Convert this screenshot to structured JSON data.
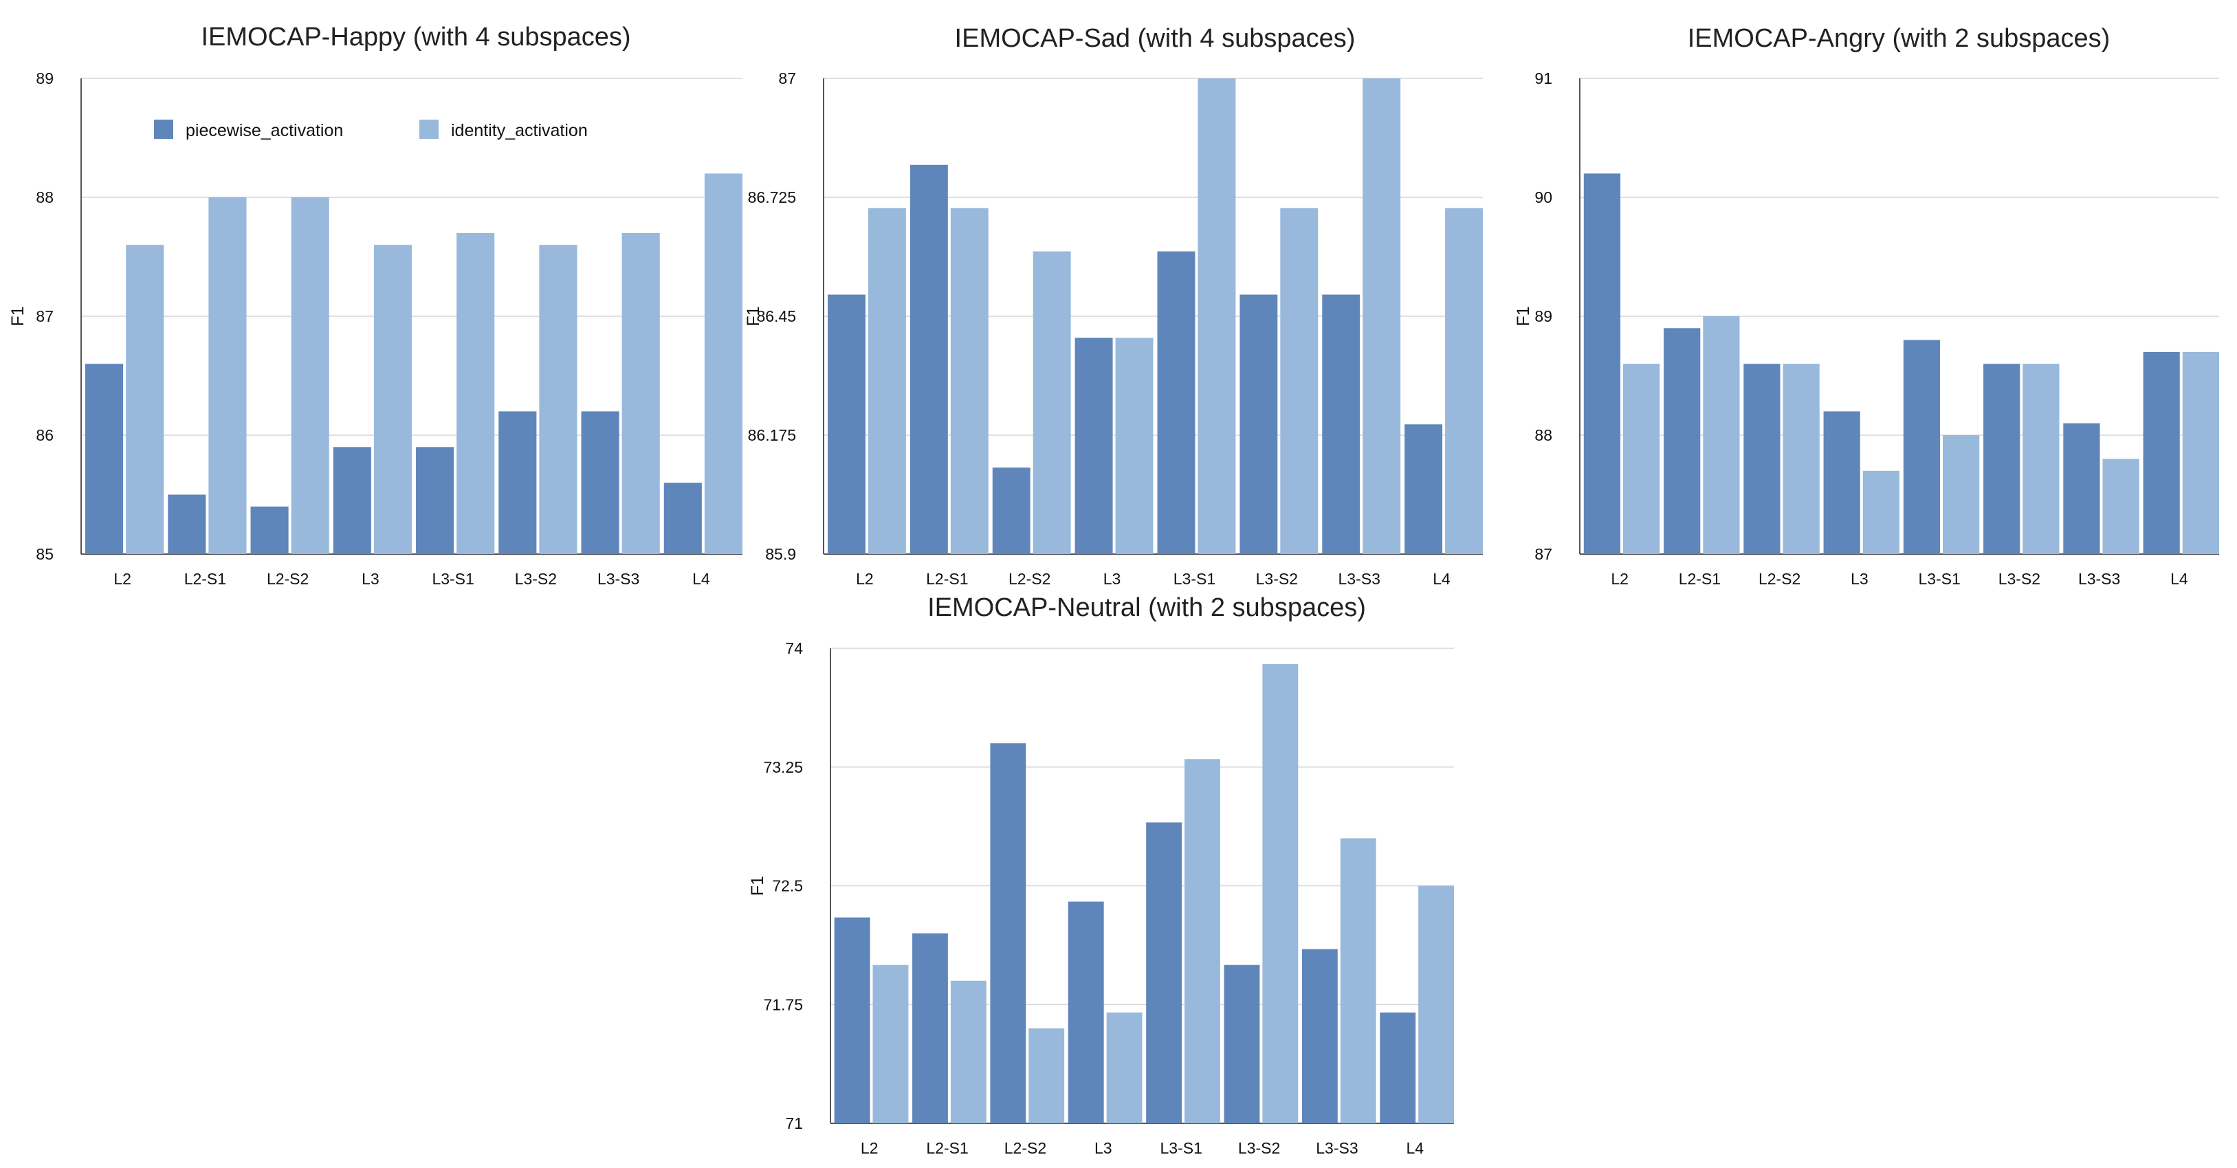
{
  "chart_data": [
    {
      "type": "bar",
      "title": "IEMOCAP-Happy (with 4 subspaces)",
      "xlabel": "",
      "ylabel": "F1",
      "ylim": [
        85,
        89
      ],
      "yticks": [
        "85",
        "86",
        "87",
        "88",
        "89"
      ],
      "categories": [
        "L2",
        "L2-S1",
        "L2-S2",
        "L3",
        "L3-S1",
        "L3-S2",
        "L3-S3",
        "L4"
      ],
      "series": [
        {
          "name": "piecewise_activation",
          "color": "#5f86bb",
          "values": [
            86.6,
            85.5,
            85.4,
            85.9,
            85.9,
            86.2,
            86.2,
            85.6
          ]
        },
        {
          "name": "identity_activation",
          "color": "#98b9dc",
          "values": [
            87.6,
            88.0,
            88.0,
            87.6,
            87.7,
            87.6,
            87.7,
            88.2
          ]
        }
      ],
      "legend": "top-left"
    },
    {
      "type": "bar",
      "title": "IEMOCAP-Sad (with 4 subspaces)",
      "xlabel": "",
      "ylabel": "F1",
      "ylim": [
        85.9,
        87
      ],
      "yticks": [
        "85.9",
        "86.175",
        "86.45",
        "86.725",
        "87"
      ],
      "categories": [
        "L2",
        "L2-S1",
        "L2-S2",
        "L3",
        "L3-S1",
        "L3-S2",
        "L3-S3",
        "L4"
      ],
      "series": [
        {
          "name": "piecewise_activation",
          "color": "#5f86bb",
          "values": [
            86.5,
            86.8,
            86.1,
            86.4,
            86.6,
            86.5,
            86.5,
            86.2
          ]
        },
        {
          "name": "identity_activation",
          "color": "#98b9dc",
          "values": [
            86.7,
            86.7,
            86.6,
            86.4,
            87.0,
            86.7,
            87.0,
            86.7
          ]
        }
      ]
    },
    {
      "type": "bar",
      "title": "IEMOCAP-Angry (with 2 subspaces)",
      "xlabel": "",
      "ylabel": "F1",
      "ylim": [
        87,
        91
      ],
      "yticks": [
        "87",
        "88",
        "89",
        "90",
        "91"
      ],
      "categories": [
        "L2",
        "L2-S1",
        "L2-S2",
        "L3",
        "L3-S1",
        "L3-S2",
        "L3-S3",
        "L4"
      ],
      "series": [
        {
          "name": "piecewise_activation",
          "color": "#5f86bb",
          "values": [
            90.2,
            88.9,
            88.6,
            88.2,
            88.8,
            88.6,
            88.1,
            88.7
          ]
        },
        {
          "name": "identity_activation",
          "color": "#98b9dc",
          "values": [
            88.6,
            89.0,
            88.6,
            87.7,
            88.0,
            88.6,
            87.8,
            88.7
          ]
        }
      ]
    },
    {
      "type": "bar",
      "title": "IEMOCAP-Neutral (with 2 subspaces)",
      "xlabel": "",
      "ylabel": "F1",
      "ylim": [
        71,
        74
      ],
      "yticks": [
        "71",
        "71.75",
        "72.5",
        "73.25",
        "74"
      ],
      "categories": [
        "L2",
        "L2-S1",
        "L2-S2",
        "L3",
        "L3-S1",
        "L3-S2",
        "L3-S3",
        "L4"
      ],
      "series": [
        {
          "name": "piecewise_activation",
          "color": "#5f86bb",
          "values": [
            72.3,
            72.2,
            73.4,
            72.4,
            72.9,
            72.0,
            72.1,
            71.7
          ]
        },
        {
          "name": "identity_activation",
          "color": "#98b9dc",
          "values": [
            72.0,
            71.9,
            71.6,
            71.7,
            73.3,
            73.9,
            72.8,
            72.5
          ]
        }
      ]
    }
  ]
}
